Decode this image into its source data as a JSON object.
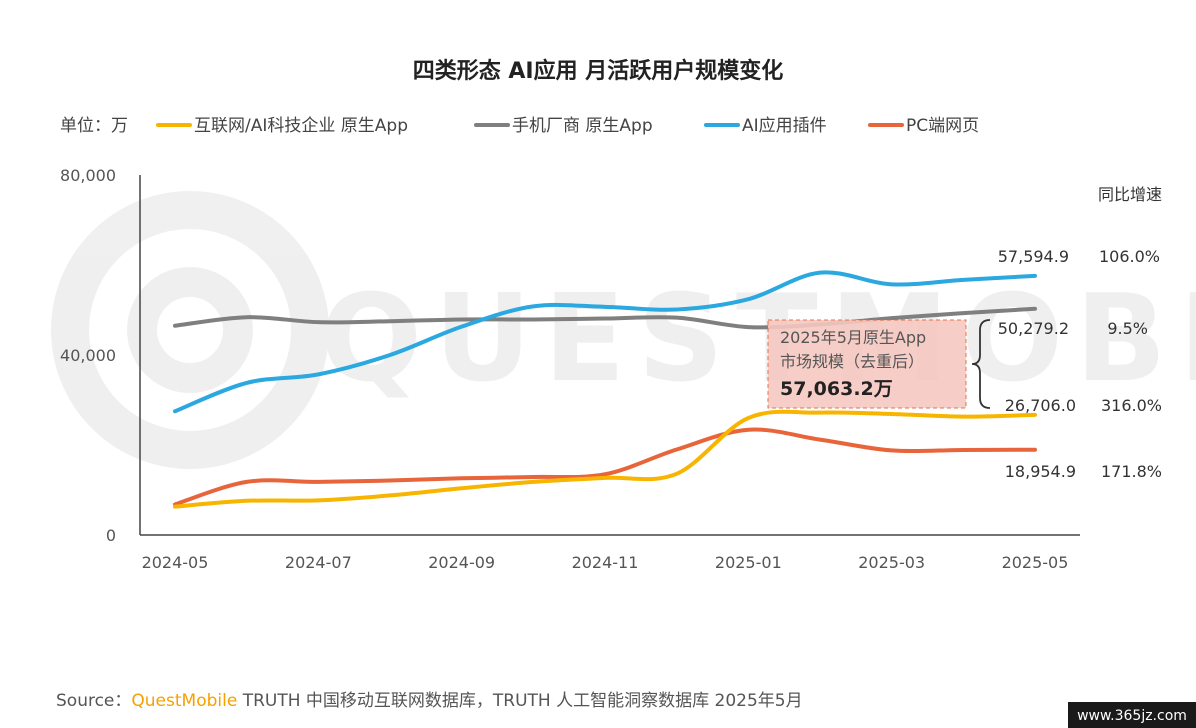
{
  "chart_data": {
    "type": "line",
    "title": "四类形态 AI应用 月活跃用户规模变化",
    "unit_label": "单位：万",
    "x": [
      "2024-05",
      "2024-06",
      "2024-07",
      "2024-08",
      "2024-09",
      "2024-10",
      "2024-11",
      "2024-12",
      "2025-01",
      "2025-02",
      "2025-03",
      "2025-04",
      "2025-05"
    ],
    "x_tick_labels": [
      "2024-05",
      "2024-07",
      "2024-09",
      "2024-11",
      "2025-01",
      "2025-03",
      "2025-05"
    ],
    "y_tick_labels": [
      "80,000",
      "40,000",
      "0"
    ],
    "ylim": [
      0,
      80000
    ],
    "grid": false,
    "legend_position": "top-left",
    "series": [
      {
        "name": "互联网/AI科技企业 原生App",
        "color": "#f7b500",
        "values": [
          6300,
          7600,
          7700,
          8800,
          10400,
          11800,
          12700,
          13600,
          26000,
          27200,
          26900,
          26300,
          26706.0
        ],
        "end_label": "26,706.0",
        "yoy": "316.0%"
      },
      {
        "name": "手机厂商 原生App",
        "color": "#7f7f7f",
        "values": [
          46500,
          48400,
          47300,
          47500,
          47900,
          47900,
          48100,
          48300,
          46200,
          46800,
          48200,
          49300,
          50279.2
        ],
        "end_label": "50,279.2",
        "yoy": "9.5%"
      },
      {
        "name": "AI应用插件",
        "color": "#2aa8df",
        "values": [
          27500,
          33800,
          35700,
          40000,
          46300,
          50800,
          50700,
          50100,
          52400,
          58300,
          55700,
          56700,
          57594.9
        ],
        "end_label": "57,594.9",
        "yoy": "106.0%"
      },
      {
        "name": "PC端网页",
        "color": "#e8643a",
        "values": [
          6800,
          11800,
          11800,
          12100,
          12600,
          12900,
          13500,
          19000,
          23400,
          21200,
          18800,
          18900,
          18954.9
        ],
        "end_label": "18,954.9",
        "yoy": "171.8%"
      }
    ],
    "yoy_header": "同比增速",
    "callout": {
      "line1": "2025年5月原生App",
      "line2": "市场规模（去重后）",
      "value": "57,063.2万"
    }
  },
  "watermark": "QUESTMOBILE",
  "source": {
    "prefix": "Source：",
    "brand": "QuestMobile",
    "rest": " TRUTH 中国移动互联网数据库，TRUTH 人工智能洞察数据库 2025年5月"
  },
  "footer_site": "www.365jz.com"
}
